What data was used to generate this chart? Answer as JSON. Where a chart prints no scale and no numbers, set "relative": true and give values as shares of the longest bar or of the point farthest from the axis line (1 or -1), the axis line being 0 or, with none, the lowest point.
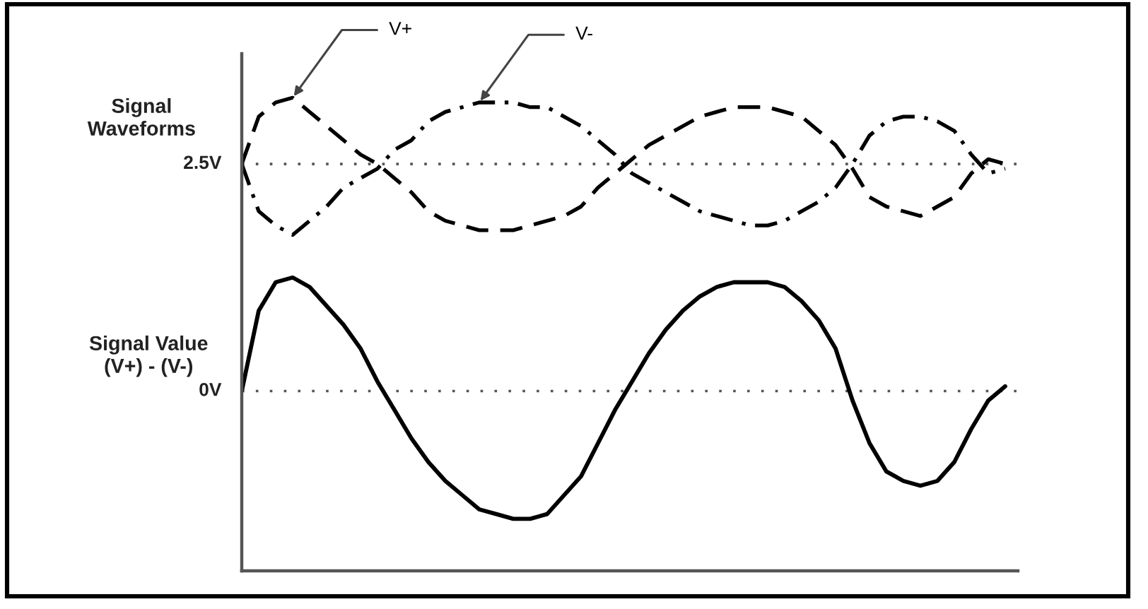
{
  "chart_data": {
    "type": "line",
    "relative": true,
    "tick_labels": false,
    "annotations": [
      "Signal\nWaveforms",
      "Signal Value\n(V+) - (V-)"
    ],
    "categories": [
      null,
      null,
      null,
      null,
      null,
      null,
      null,
      null,
      null,
      null,
      null,
      null,
      null,
      null,
      null,
      null,
      null,
      null,
      null,
      null,
      null,
      null,
      null,
      null,
      null,
      null,
      null,
      null,
      null,
      null,
      null,
      null,
      null,
      null,
      null,
      null,
      null,
      null,
      null,
      null,
      null,
      null,
      null,
      null,
      null,
      null
    ],
    "series": [
      {
        "name": "V+",
        "color": "#000000",
        "line_style": "dashed",
        "values": [
          0.86,
          0.96,
          0.99,
          1.0,
          0.97,
          0.94,
          0.91,
          0.88,
          0.86,
          0.83,
          0.8,
          0.76,
          0.74,
          0.73,
          0.72,
          0.72,
          0.72,
          0.73,
          0.74,
          0.75,
          0.77,
          0.81,
          0.84,
          0.87,
          0.9,
          0.92,
          0.94,
          0.96,
          0.97,
          0.98,
          0.98,
          0.98,
          0.97,
          0.96,
          0.93,
          0.9,
          0.85,
          0.79,
          0.77,
          0.76,
          0.75,
          0.77,
          0.79,
          0.84,
          0.87,
          0.86
        ]
      },
      {
        "name": "V-",
        "color": "#000000",
        "line_style": "dashdot",
        "values": [
          0.86,
          0.76,
          0.73,
          0.71,
          0.74,
          0.77,
          0.81,
          0.83,
          0.85,
          0.89,
          0.91,
          0.95,
          0.97,
          0.98,
          0.99,
          0.99,
          0.99,
          0.98,
          0.98,
          0.96,
          0.94,
          0.91,
          0.88,
          0.84,
          0.82,
          0.8,
          0.78,
          0.76,
          0.75,
          0.74,
          0.73,
          0.73,
          0.74,
          0.76,
          0.78,
          0.81,
          0.86,
          0.92,
          0.95,
          0.96,
          0.96,
          0.95,
          0.93,
          0.88,
          0.84,
          0.85
        ]
      },
      {
        "color": "#000000",
        "line_style": "solid",
        "values": [
          0.38,
          0.55,
          0.61,
          0.62,
          0.6,
          0.56,
          0.52,
          0.47,
          0.4,
          0.34,
          0.28,
          0.23,
          0.19,
          0.16,
          0.13,
          0.12,
          0.11,
          0.11,
          0.12,
          0.16,
          0.2,
          0.27,
          0.34,
          0.4,
          0.46,
          0.51,
          0.55,
          0.58,
          0.6,
          0.61,
          0.61,
          0.61,
          0.6,
          0.57,
          0.53,
          0.47,
          0.36,
          0.27,
          0.21,
          0.19,
          0.18,
          0.19,
          0.23,
          0.3,
          0.36,
          0.39
        ]
      }
    ],
    "ref_lines": [
      {
        "axis": "y",
        "value": 0.86,
        "label": "2.5V",
        "line_style": "dotted",
        "color": "#555555"
      },
      {
        "axis": "y",
        "value": 0.38,
        "label": "0V",
        "line_style": "dotted",
        "color": "#555555"
      }
    ]
  }
}
